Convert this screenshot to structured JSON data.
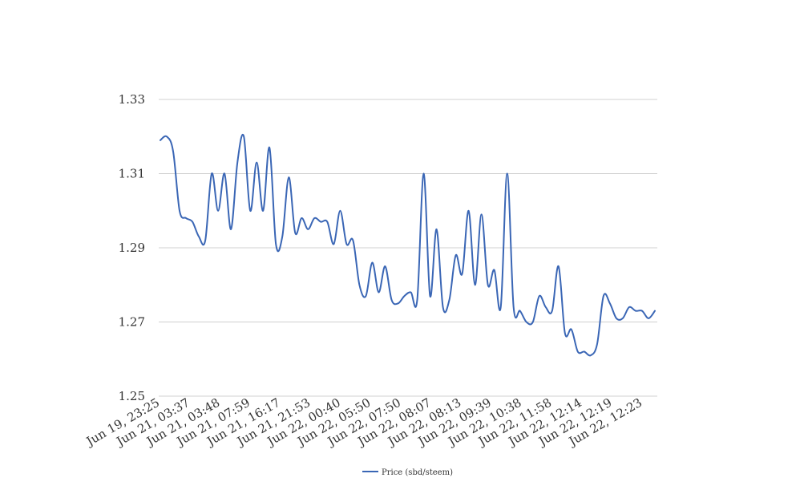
{
  "chart_data": {
    "type": "line",
    "title": "",
    "xlabel": "",
    "ylabel": "",
    "ylim": [
      1.25,
      1.33
    ],
    "yticks": [
      "1.33",
      "1.31",
      "1.29",
      "1.27",
      "1.25"
    ],
    "grid": true,
    "legend_position": "bottom-center",
    "x_tick_labels": [
      "Jun 19, 23:25",
      "Jun 21, 03:37",
      "Jun 21, 03:48",
      "Jun 21, 07:59",
      "Jun 21, 16:17",
      "Jun 21, 21:53",
      "Jun 22, 00:40",
      "Jun 22, 05:50",
      "Jun 22, 07:50",
      "Jun 22, 08:07",
      "Jun 22, 08:13",
      "Jun 22, 09:39",
      "Jun 22, 10:38",
      "Jun 22, 11:58",
      "Jun 22, 12:14",
      "Jun 22, 12:19",
      "Jun 22, 12:23"
    ],
    "series": [
      {
        "name": "Price (sbd/steem)",
        "color": "#3a66b5",
        "values": [
          1.319,
          1.32,
          1.316,
          1.3,
          1.298,
          1.297,
          1.293,
          1.292,
          1.31,
          1.3,
          1.31,
          1.295,
          1.313,
          1.32,
          1.3,
          1.313,
          1.3,
          1.317,
          1.291,
          1.293,
          1.309,
          1.294,
          1.298,
          1.295,
          1.298,
          1.297,
          1.297,
          1.291,
          1.3,
          1.291,
          1.292,
          1.28,
          1.277,
          1.286,
          1.278,
          1.285,
          1.276,
          1.275,
          1.277,
          1.278,
          1.276,
          1.31,
          1.277,
          1.295,
          1.274,
          1.276,
          1.288,
          1.283,
          1.3,
          1.28,
          1.299,
          1.28,
          1.284,
          1.274,
          1.31,
          1.274,
          1.273,
          1.27,
          1.27,
          1.277,
          1.274,
          1.273,
          1.285,
          1.267,
          1.268,
          1.262,
          1.262,
          1.261,
          1.264,
          1.277,
          1.275,
          1.271,
          1.271,
          1.274,
          1.273,
          1.273,
          1.271,
          1.273
        ]
      }
    ]
  }
}
